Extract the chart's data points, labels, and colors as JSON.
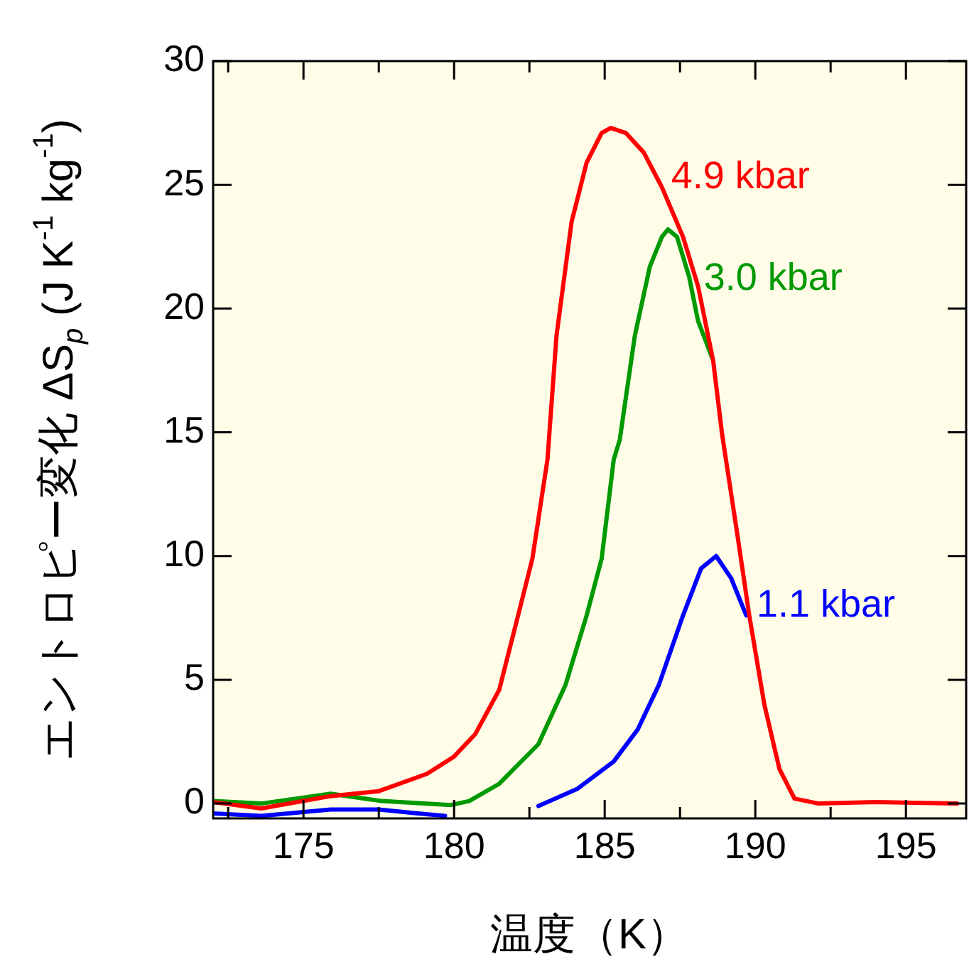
{
  "chart_data": {
    "type": "line",
    "xlabel": "温度（K）",
    "ylabel": "エントロピー変化 ΔS$_{p}$ (J K$^{-1}$ kg$^{-1}$)",
    "xlim": [
      172,
      197
    ],
    "ylim": [
      -0.6,
      30
    ],
    "xticks": [
      {
        "value": 172.5,
        "label": null
      },
      175,
      {
        "value": 177.5,
        "label": null
      },
      180,
      {
        "value": 182.5,
        "label": null
      },
      185,
      {
        "value": 187.5,
        "label": null
      },
      190,
      {
        "value": 192.5,
        "label": null
      },
      195
    ],
    "yticks": [
      0,
      5,
      10,
      15,
      20,
      25,
      30
    ],
    "grid": false,
    "marker": "none",
    "line_style": "solid",
    "series": [
      {
        "name": "4.9 kbar",
        "color": "#ff0000",
        "x": [
          172,
          173.6,
          175.9,
          177.5,
          179.1,
          180,
          180.7,
          181.5,
          182,
          182.6,
          183.1,
          183.4,
          183.9,
          184.4,
          184.9,
          185.2,
          185.7,
          186.3,
          186.9,
          187.6,
          188.1,
          188.6,
          188.9,
          189.4,
          189.8,
          190.3,
          190.8,
          191.3,
          192.1,
          194,
          196.7
        ],
        "values": [
          0.06,
          -0.2,
          0.3,
          0.5,
          1.2,
          1.9,
          2.8,
          4.6,
          7,
          9.9,
          13.9,
          18.9,
          23.5,
          25.9,
          27.1,
          27.3,
          27.1,
          26.3,
          24.9,
          22.9,
          20.9,
          17.9,
          14.9,
          10.9,
          7.6,
          4,
          1.4,
          0.2,
          0,
          0.06,
          0
        ]
      },
      {
        "name": "3.0 kbar",
        "color": "#009900",
        "x": [
          172,
          173.6,
          175.9,
          177.6,
          179.9,
          180.5,
          181.5,
          182.8,
          183.7,
          184.4,
          184.9,
          185.3,
          185.5,
          186,
          186.5,
          186.9,
          187.1,
          187.4,
          187.8,
          188.1,
          188.6
        ],
        "values": [
          0.1,
          0,
          0.4,
          0.1,
          -0.06,
          0.1,
          0.8,
          2.4,
          4.8,
          7.6,
          9.9,
          13.9,
          14.7,
          18.9,
          21.7,
          22.9,
          23.2,
          22.9,
          21.3,
          19.5,
          17.9
        ]
      },
      {
        "name": "1.1 kbar",
        "color": "#0000ff",
        "x": [
          172,
          173.6,
          175.9,
          177.5,
          178.8,
          179.7,
          180.6,
          181.6,
          182.8,
          184.1,
          185.3,
          186.1,
          186.8,
          187.6,
          188.2,
          188.7,
          189.2,
          189.7
        ],
        "values": [
          -0.4,
          -0.5,
          -0.24,
          -0.24,
          -0.4,
          -0.5,
          null,
          null,
          -0.1,
          0.6,
          1.7,
          3,
          4.8,
          7.6,
          9.5,
          10,
          9.1,
          7.6
        ]
      }
    ]
  }
}
